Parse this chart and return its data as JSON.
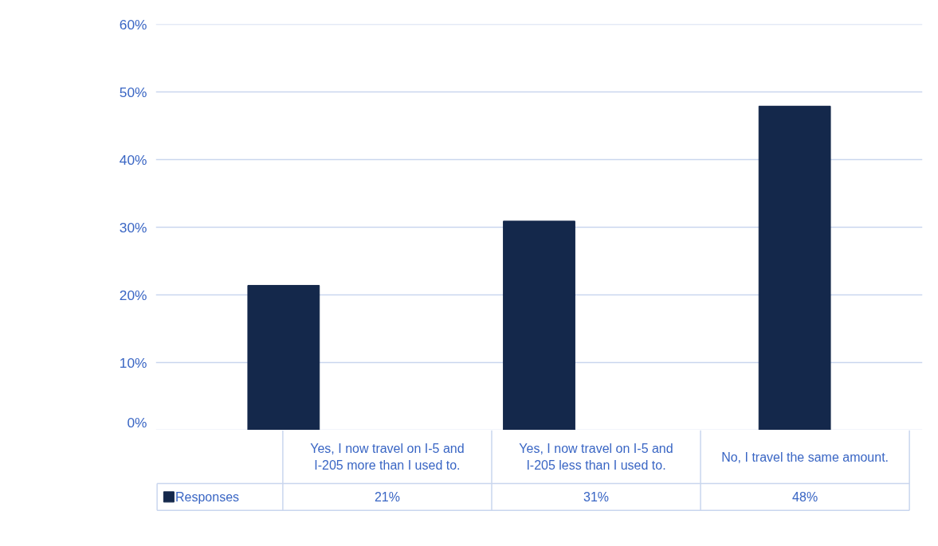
{
  "chart_data": {
    "type": "bar",
    "categories": [
      "Yes, I now travel on I-5 and I-205 more than I used to.",
      "Yes, I now travel on I-5 and I-205 less than I used to.",
      "No, I travel the same amount."
    ],
    "series": [
      {
        "name": "Responses",
        "color": "#14284b",
        "values": [
          21.4,
          30.9,
          47.9
        ],
        "value_labels": [
          "21%",
          "31%",
          "48%"
        ]
      }
    ],
    "ylim": [
      0,
      60
    ],
    "yticks": [
      {
        "value": 0,
        "label": "0%"
      },
      {
        "value": 10,
        "label": "10%"
      },
      {
        "value": 20,
        "label": "20%"
      },
      {
        "value": 30,
        "label": "30%"
      },
      {
        "value": 40,
        "label": "40%"
      },
      {
        "value": 50,
        "label": "50%"
      },
      {
        "value": 60,
        "label": "60%"
      }
    ],
    "grid": "y",
    "legend": "bottom left"
  }
}
